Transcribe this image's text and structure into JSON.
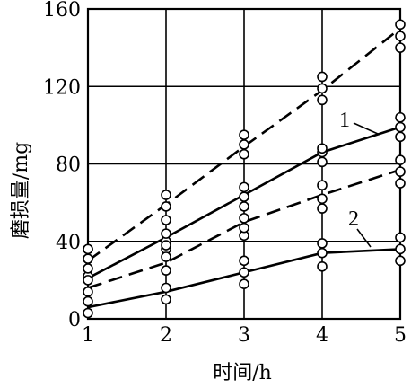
{
  "chart_data": {
    "type": "line",
    "xlabel": "时间/h",
    "ylabel": "磨损量/mg",
    "x_ticks": [
      "1",
      "2",
      "3",
      "4",
      "5"
    ],
    "y_ticks": [
      "0",
      "40",
      "80",
      "120",
      "160"
    ],
    "xlim": [
      1,
      5
    ],
    "ylim": [
      0,
      160
    ],
    "grid": true,
    "series": [
      {
        "name": "1",
        "style": "solid",
        "fit": [
          [
            1,
            21
          ],
          [
            2,
            42
          ],
          [
            3,
            64
          ],
          [
            4,
            86
          ],
          [
            5,
            99
          ]
        ],
        "points": [
          [
            1,
            22
          ],
          [
            1,
            26
          ],
          [
            1,
            31
          ],
          [
            1,
            36
          ],
          [
            2,
            36
          ],
          [
            2,
            40
          ],
          [
            2,
            44
          ],
          [
            3,
            58
          ],
          [
            3,
            63
          ],
          [
            3,
            68
          ],
          [
            4,
            81
          ],
          [
            4,
            86
          ],
          [
            4,
            88
          ],
          [
            5,
            94
          ],
          [
            5,
            99
          ],
          [
            5,
            104
          ]
        ]
      },
      {
        "name": "",
        "style": "dashed",
        "fit": [
          [
            1,
            30
          ],
          [
            2,
            59
          ],
          [
            3,
            89
          ],
          [
            4,
            118
          ],
          [
            5,
            150
          ]
        ],
        "points": [
          [
            1,
            31
          ],
          [
            1,
            36
          ],
          [
            2,
            51
          ],
          [
            2,
            58
          ],
          [
            2,
            64
          ],
          [
            3,
            85
          ],
          [
            3,
            90
          ],
          [
            3,
            95
          ],
          [
            4,
            113
          ],
          [
            4,
            119
          ],
          [
            4,
            125
          ],
          [
            5,
            140
          ],
          [
            5,
            146
          ],
          [
            5,
            152
          ]
        ]
      },
      {
        "name": "",
        "style": "dashed",
        "fit": [
          [
            1,
            16
          ],
          [
            2,
            29
          ],
          [
            3,
            50
          ],
          [
            4,
            64
          ],
          [
            5,
            77
          ]
        ],
        "points": [
          [
            1,
            14
          ],
          [
            1,
            20
          ],
          [
            2,
            25
          ],
          [
            2,
            32
          ],
          [
            2,
            38
          ],
          [
            3,
            43
          ],
          [
            3,
            47
          ],
          [
            3,
            52
          ],
          [
            4,
            57
          ],
          [
            4,
            62
          ],
          [
            4,
            69
          ],
          [
            5,
            70
          ],
          [
            5,
            76
          ],
          [
            5,
            82
          ]
        ]
      },
      {
        "name": "2",
        "style": "solid",
        "fit": [
          [
            1,
            6
          ],
          [
            2,
            14
          ],
          [
            3,
            24
          ],
          [
            4,
            34
          ],
          [
            5,
            36
          ]
        ],
        "points": [
          [
            1,
            3
          ],
          [
            1,
            9
          ],
          [
            2,
            10
          ],
          [
            2,
            16
          ],
          [
            3,
            18
          ],
          [
            3,
            24
          ],
          [
            3,
            30
          ],
          [
            4,
            27
          ],
          [
            4,
            34
          ],
          [
            4,
            39
          ],
          [
            5,
            30
          ],
          [
            5,
            36
          ],
          [
            5,
            42
          ]
        ]
      }
    ]
  }
}
